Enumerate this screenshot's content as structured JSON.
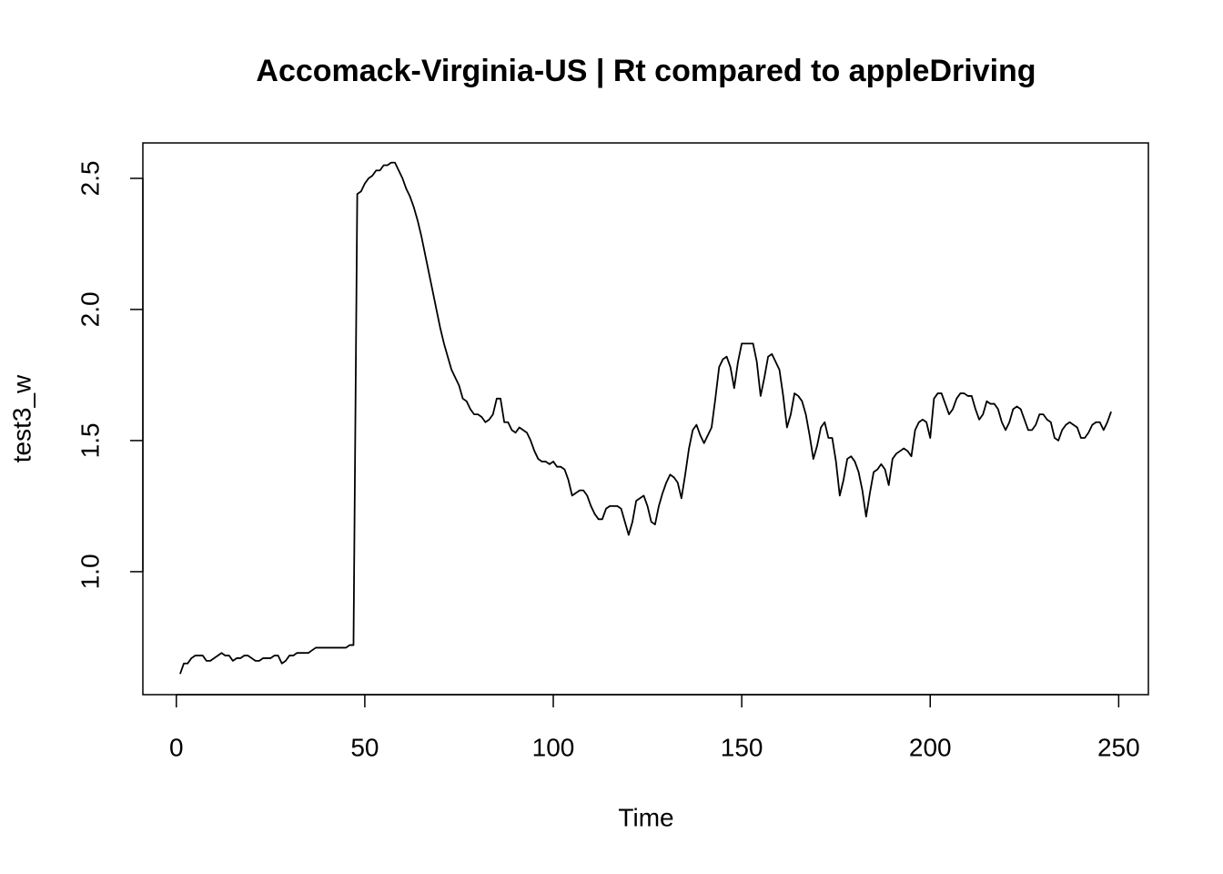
{
  "chart_data": {
    "type": "line",
    "title": "Accomack-Virginia-US | Rt compared to appleDriving",
    "x_label": "Time",
    "y_label": "test3_w",
    "color": "#000000",
    "xlim": [
      -8.88,
      257.88
    ],
    "ylim": [
      0.531,
      2.635
    ],
    "xticks": [
      0,
      50,
      100,
      150,
      200,
      250
    ],
    "yticks": [
      {
        "value": 1,
        "label": "1.0"
      },
      1.5,
      {
        "value": 2,
        "label": "2.0"
      },
      2.5
    ],
    "x": [
      1,
      2,
      3,
      4,
      5,
      6,
      7,
      8,
      9,
      10,
      11,
      12,
      13,
      14,
      15,
      16,
      17,
      18,
      19,
      20,
      21,
      22,
      23,
      24,
      25,
      26,
      27,
      28,
      29,
      30,
      31,
      32,
      33,
      34,
      35,
      36,
      37,
      38,
      39,
      40,
      41,
      42,
      43,
      44,
      45,
      46,
      47,
      48,
      49,
      50,
      51,
      52,
      53,
      54,
      55,
      56,
      57,
      58,
      59,
      60,
      61,
      62,
      63,
      64,
      65,
      66,
      67,
      68,
      69,
      70,
      71,
      72,
      73,
      74,
      75,
      76,
      77,
      78,
      79,
      80,
      81,
      82,
      83,
      84,
      85,
      86,
      87,
      88,
      89,
      90,
      91,
      92,
      93,
      94,
      95,
      96,
      97,
      98,
      99,
      100,
      101,
      102,
      103,
      104,
      105,
      106,
      107,
      108,
      109,
      110,
      111,
      112,
      113,
      114,
      115,
      116,
      117,
      118,
      119,
      120,
      121,
      122,
      123,
      124,
      125,
      126,
      127,
      128,
      129,
      130,
      131,
      132,
      133,
      134,
      135,
      136,
      137,
      138,
      139,
      140,
      141,
      142,
      143,
      144,
      145,
      146,
      147,
      148,
      149,
      150,
      151,
      152,
      153,
      154,
      155,
      156,
      157,
      158,
      159,
      160,
      161,
      162,
      163,
      164,
      165,
      166,
      167,
      168,
      169,
      170,
      171,
      172,
      173,
      174,
      175,
      176,
      177,
      178,
      179,
      180,
      181,
      182,
      183,
      184,
      185,
      186,
      187,
      188,
      189,
      190,
      191,
      192,
      193,
      194,
      195,
      196,
      197,
      198,
      199,
      200,
      201,
      202,
      203,
      204,
      205,
      206,
      207,
      208,
      209,
      210,
      211,
      212,
      213,
      214,
      215,
      216,
      217,
      218,
      219,
      220,
      221,
      222,
      223,
      224,
      225,
      226,
      227,
      228,
      229,
      230,
      231,
      232,
      233,
      234,
      235,
      236,
      237,
      238,
      239,
      240,
      241,
      242,
      243,
      244,
      245,
      246,
      247,
      248
    ],
    "values": [
      0.61,
      0.65,
      0.65,
      0.67,
      0.68,
      0.68,
      0.68,
      0.66,
      0.66,
      0.67,
      0.68,
      0.69,
      0.68,
      0.68,
      0.66,
      0.67,
      0.67,
      0.68,
      0.68,
      0.67,
      0.66,
      0.66,
      0.67,
      0.67,
      0.67,
      0.68,
      0.68,
      0.65,
      0.66,
      0.68,
      0.68,
      0.69,
      0.69,
      0.69,
      0.69,
      0.7,
      0.71,
      0.71,
      0.71,
      0.71,
      0.71,
      0.71,
      0.71,
      0.71,
      0.71,
      0.72,
      0.72,
      2.44,
      2.45,
      2.48,
      2.5,
      2.51,
      2.53,
      2.53,
      2.55,
      2.55,
      2.56,
      2.56,
      2.53,
      2.5,
      2.46,
      2.43,
      2.39,
      2.34,
      2.28,
      2.21,
      2.14,
      2.07,
      2.0,
      1.93,
      1.87,
      1.82,
      1.77,
      1.74,
      1.71,
      1.66,
      1.65,
      1.62,
      1.6,
      1.6,
      1.59,
      1.57,
      1.58,
      1.6,
      1.66,
      1.66,
      1.57,
      1.57,
      1.54,
      1.53,
      1.55,
      1.54,
      1.53,
      1.5,
      1.46,
      1.43,
      1.42,
      1.42,
      1.41,
      1.42,
      1.4,
      1.4,
      1.39,
      1.35,
      1.29,
      1.3,
      1.31,
      1.31,
      1.29,
      1.25,
      1.22,
      1.2,
      1.2,
      1.24,
      1.25,
      1.25,
      1.25,
      1.24,
      1.19,
      1.14,
      1.19,
      1.27,
      1.28,
      1.29,
      1.25,
      1.19,
      1.18,
      1.25,
      1.3,
      1.34,
      1.37,
      1.36,
      1.34,
      1.28,
      1.37,
      1.47,
      1.54,
      1.56,
      1.52,
      1.49,
      1.52,
      1.55,
      1.66,
      1.78,
      1.81,
      1.82,
      1.78,
      1.7,
      1.8,
      1.87,
      1.87,
      1.87,
      1.87,
      1.8,
      1.67,
      1.74,
      1.82,
      1.83,
      1.8,
      1.77,
      1.67,
      1.55,
      1.6,
      1.68,
      1.67,
      1.65,
      1.6,
      1.52,
      1.43,
      1.48,
      1.55,
      1.57,
      1.51,
      1.51,
      1.42,
      1.29,
      1.35,
      1.43,
      1.44,
      1.42,
      1.38,
      1.31,
      1.21,
      1.3,
      1.38,
      1.39,
      1.41,
      1.39,
      1.33,
      1.43,
      1.45,
      1.46,
      1.47,
      1.46,
      1.44,
      1.54,
      1.57,
      1.58,
      1.57,
      1.51,
      1.66,
      1.68,
      1.68,
      1.64,
      1.6,
      1.62,
      1.66,
      1.68,
      1.68,
      1.67,
      1.67,
      1.62,
      1.58,
      1.6,
      1.65,
      1.64,
      1.64,
      1.62,
      1.57,
      1.54,
      1.57,
      1.62,
      1.63,
      1.62,
      1.58,
      1.54,
      1.54,
      1.56,
      1.6,
      1.6,
      1.58,
      1.57,
      1.51,
      1.5,
      1.54,
      1.56,
      1.57,
      1.56,
      1.55,
      1.51,
      1.51,
      1.53,
      1.56,
      1.57,
      1.57,
      1.54,
      1.57,
      1.61
    ]
  }
}
